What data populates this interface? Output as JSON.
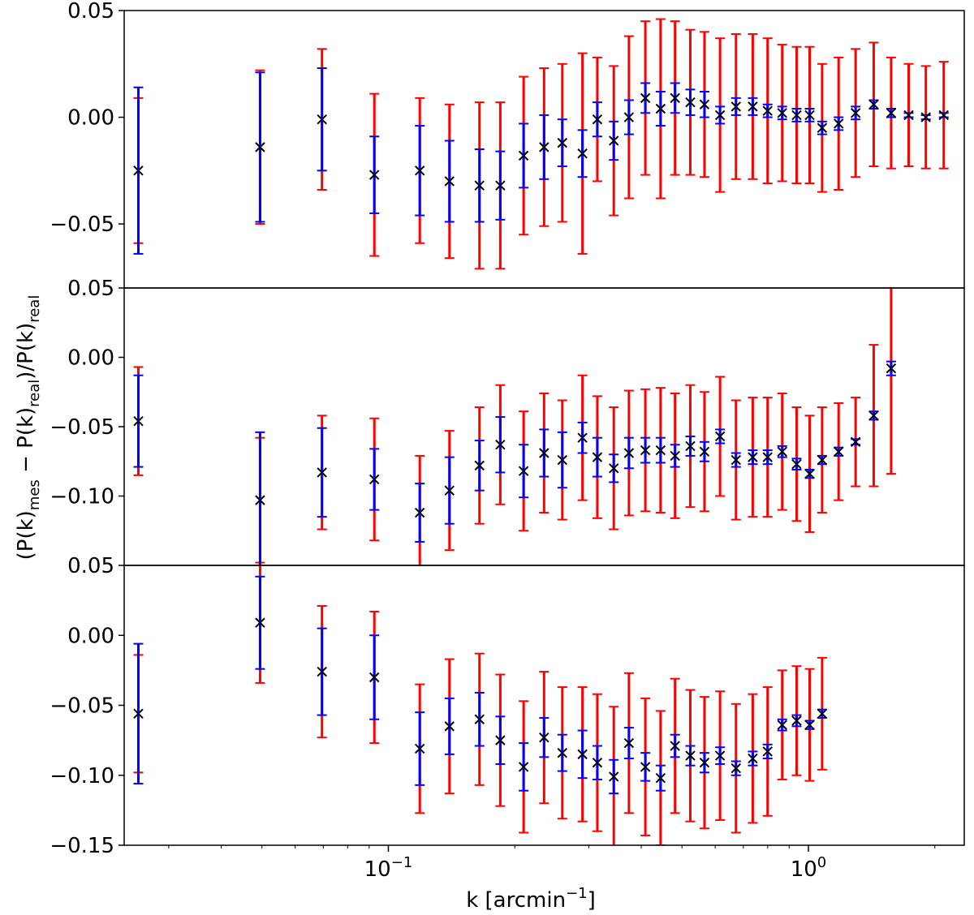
{
  "chart_data": {
    "type": "scatter",
    "xscale": "log",
    "xlim": [
      0.0235,
      2.35
    ],
    "xlabel": "k [arcmin⁻¹]",
    "ylabel": "(P(k)mes − P(k)real)/P(k)real",
    "ylabel_parts": {
      "base": "(P(k)",
      "sub1": "mes",
      "mid": " − P(k)",
      "sub2": "real",
      "mid2": ")/P(k)",
      "sub3": "real"
    },
    "xlabel_parts": {
      "base": "k [arcmin",
      "sup": "−1",
      "end": "]"
    },
    "x_major_ticks": [
      {
        "value": 0.1,
        "base": "10",
        "exp": "−1"
      },
      {
        "value": 1,
        "base": "10",
        "exp": "0"
      }
    ],
    "colors": {
      "outer_error": "#ff0000",
      "inner_error": "#0000ff",
      "marker": "#000000"
    },
    "x": [
      0.0254,
      0.0495,
      0.0695,
      0.0926,
      0.1188,
      0.1398,
      0.1648,
      0.1847,
      0.2099,
      0.2348,
      0.2595,
      0.2898,
      0.3144,
      0.3441,
      0.3739,
      0.4091,
      0.4447,
      0.4814,
      0.5234,
      0.5657,
      0.6161,
      0.6724,
      0.7371,
      0.7996,
      0.8663,
      0.9375,
      1.0069,
      1.0782,
      1.1801,
      1.2954,
      1.4306,
      1.5739,
      1.7326,
      1.9038,
      2.1001
    ],
    "panels": [
      {
        "name": "top",
        "ylim": [
          -0.08,
          0.05
        ],
        "yticks": [
          0.05,
          0.0,
          -0.05
        ],
        "ytick_labels": [
          "0.05",
          "0.00",
          "−0.05"
        ],
        "y": [
          -0.025,
          -0.014,
          -0.001,
          -0.027,
          -0.025,
          -0.03,
          -0.032,
          -0.032,
          -0.018,
          -0.014,
          -0.012,
          -0.017,
          -0.001,
          -0.011,
          0.0,
          0.009,
          0.004,
          0.009,
          0.007,
          0.006,
          0.001,
          0.005,
          0.005,
          0.003,
          0.002,
          0.001,
          0.001,
          -0.005,
          -0.003,
          0.002,
          0.006,
          0.002,
          0.001,
          0.0,
          0.001
        ],
        "outer": [
          0.034,
          0.036,
          0.033,
          0.038,
          0.034,
          0.036,
          0.039,
          0.039,
          0.037,
          0.037,
          0.037,
          0.047,
          0.029,
          0.035,
          0.038,
          0.036,
          0.042,
          0.036,
          0.034,
          0.034,
          0.036,
          0.034,
          0.034,
          0.034,
          0.032,
          0.032,
          0.032,
          0.03,
          0.031,
          0.03,
          0.029,
          0.026,
          0.024,
          0.024,
          0.025
        ],
        "inner": [
          0.039,
          0.035,
          0.024,
          0.018,
          0.021,
          0.019,
          0.017,
          0.016,
          0.015,
          0.015,
          0.011,
          0.011,
          0.008,
          0.009,
          0.008,
          0.007,
          0.008,
          0.007,
          0.006,
          0.006,
          0.004,
          0.004,
          0.004,
          0.003,
          0.003,
          0.003,
          0.003,
          0.003,
          0.003,
          0.003,
          0.002,
          0.002,
          0.001,
          0.001,
          0.001
        ]
      },
      {
        "name": "middle",
        "ylim": [
          -0.15,
          0.05
        ],
        "yticks": [
          0.05,
          0.0,
          -0.05,
          -0.1
        ],
        "ytick_labels": [
          "0.05",
          "0.00",
          "−0.05",
          "−0.10"
        ],
        "y": [
          -0.046,
          -0.103,
          -0.083,
          -0.088,
          -0.112,
          -0.096,
          -0.078,
          -0.063,
          -0.082,
          -0.069,
          -0.074,
          -0.058,
          -0.072,
          -0.08,
          -0.069,
          -0.067,
          -0.067,
          -0.071,
          -0.064,
          -0.068,
          -0.057,
          -0.074,
          -0.072,
          -0.072,
          -0.068,
          -0.077,
          -0.084,
          -0.074,
          -0.068,
          -0.061,
          -0.042,
          -0.008
        ],
        "outer": [
          0.039,
          0.045,
          0.041,
          0.044,
          0.041,
          0.043,
          0.042,
          0.043,
          0.043,
          0.043,
          0.043,
          0.045,
          0.044,
          0.044,
          0.045,
          0.044,
          0.045,
          0.045,
          0.044,
          0.043,
          0.043,
          0.043,
          0.043,
          0.043,
          0.042,
          0.041,
          0.042,
          0.038,
          0.035,
          0.032,
          0.051,
          0.076
        ],
        "inner": [
          0.033,
          0.049,
          0.032,
          0.022,
          0.021,
          0.024,
          0.018,
          0.02,
          0.019,
          0.017,
          0.02,
          0.011,
          0.014,
          0.01,
          0.011,
          0.009,
          0.009,
          0.008,
          0.007,
          0.007,
          0.005,
          0.005,
          0.005,
          0.005,
          0.004,
          0.004,
          0.003,
          0.003,
          0.003,
          0.002,
          0.003,
          0.005
        ]
      },
      {
        "name": "bottom",
        "ylim": [
          -0.15,
          0.05
        ],
        "yticks": [
          0.05,
          0.0,
          -0.05,
          -0.1,
          -0.15
        ],
        "ytick_labels": [
          "0.05",
          "0.00",
          "−0.05",
          "−0.10",
          "−0.15"
        ],
        "y": [
          -0.056,
          0.009,
          -0.026,
          -0.03,
          -0.081,
          -0.065,
          -0.06,
          -0.075,
          -0.094,
          -0.073,
          -0.084,
          -0.085,
          -0.091,
          -0.101,
          -0.077,
          -0.094,
          -0.102,
          -0.079,
          -0.086,
          -0.091,
          -0.086,
          -0.095,
          -0.088,
          -0.083,
          -0.064,
          -0.061,
          -0.064,
          -0.056
        ],
        "outer": [
          0.042,
          0.043,
          0.047,
          0.047,
          0.046,
          0.048,
          0.047,
          0.047,
          0.047,
          0.047,
          0.047,
          0.048,
          0.049,
          0.05,
          0.05,
          0.049,
          0.048,
          0.048,
          0.047,
          0.047,
          0.046,
          0.046,
          0.046,
          0.046,
          0.039,
          0.039,
          0.04,
          0.04
        ],
        "inner": [
          0.05,
          0.033,
          0.031,
          0.03,
          0.026,
          0.02,
          0.019,
          0.017,
          0.017,
          0.014,
          0.013,
          0.017,
          0.012,
          0.012,
          0.011,
          0.01,
          0.009,
          0.008,
          0.007,
          0.007,
          0.006,
          0.005,
          0.005,
          0.005,
          0.004,
          0.004,
          0.003,
          0.003
        ]
      }
    ]
  }
}
